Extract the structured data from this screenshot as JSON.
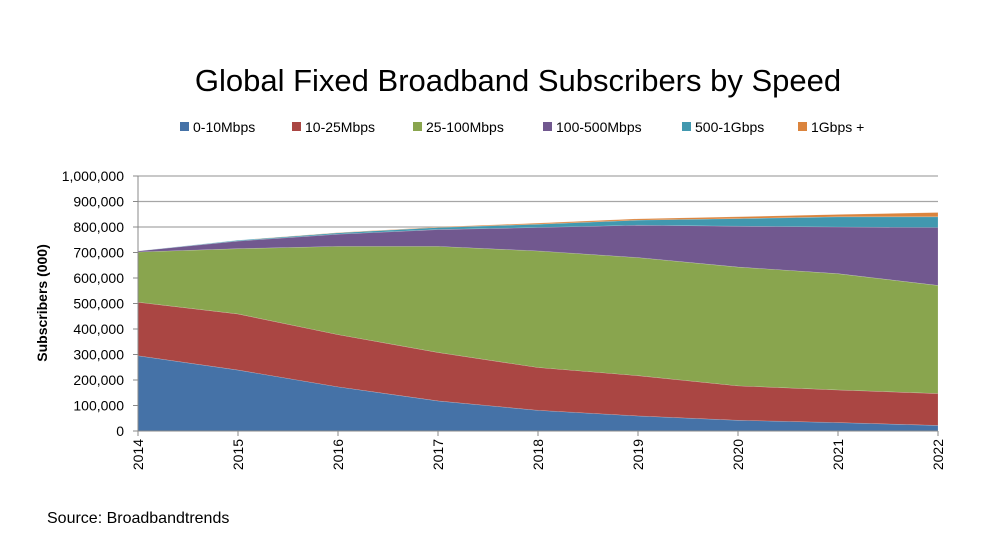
{
  "chart_data": {
    "type": "area",
    "stacked": true,
    "title": "Global Fixed Broadband Subscribers by Speed",
    "ylabel": "Subscribers (000)",
    "xlabel": "",
    "source": "Source:  Broadbandtrends",
    "ylim": [
      0,
      1000000
    ],
    "yticks": [
      "0",
      "100,000",
      "200,000",
      "300,000",
      "400,000",
      "500,000",
      "600,000",
      "700,000",
      "800,000",
      "900,000",
      "1,000,000"
    ],
    "ytick_values": [
      0,
      100000,
      200000,
      300000,
      400000,
      500000,
      600000,
      700000,
      800000,
      900000,
      1000000
    ],
    "grid": true,
    "legend_position": "top",
    "categories": [
      "2014",
      "2015",
      "2016",
      "2017",
      "2018",
      "2019",
      "2020",
      "2021",
      "2022"
    ],
    "series": [
      {
        "name": "0-10Mbps",
        "color": "#4572A7",
        "values": [
          295000,
          239000,
          173000,
          118000,
          81000,
          59000,
          42000,
          33000,
          22000
        ]
      },
      {
        "name": "10-25Mbps",
        "color": "#AA4643",
        "values": [
          210000,
          220000,
          205000,
          190000,
          168000,
          158000,
          135000,
          128000,
          125000
        ]
      },
      {
        "name": "25-100Mbps",
        "color": "#89A54E",
        "values": [
          197000,
          256000,
          346000,
          416000,
          457000,
          463000,
          466000,
          456000,
          424000
        ]
      },
      {
        "name": "100-500Mbps",
        "color": "#71588F",
        "values": [
          4000,
          30000,
          48000,
          66000,
          92000,
          127000,
          160000,
          183000,
          227000
        ]
      },
      {
        "name": "500-1Gbps",
        "color": "#4198AF",
        "values": [
          0,
          3000,
          5000,
          8000,
          13000,
          20000,
          30000,
          40000,
          42000
        ]
      },
      {
        "name": "1Gbps +",
        "color": "#DB843D",
        "values": [
          0,
          0,
          1000,
          2000,
          4000,
          5000,
          7000,
          9000,
          17000
        ]
      }
    ]
  }
}
